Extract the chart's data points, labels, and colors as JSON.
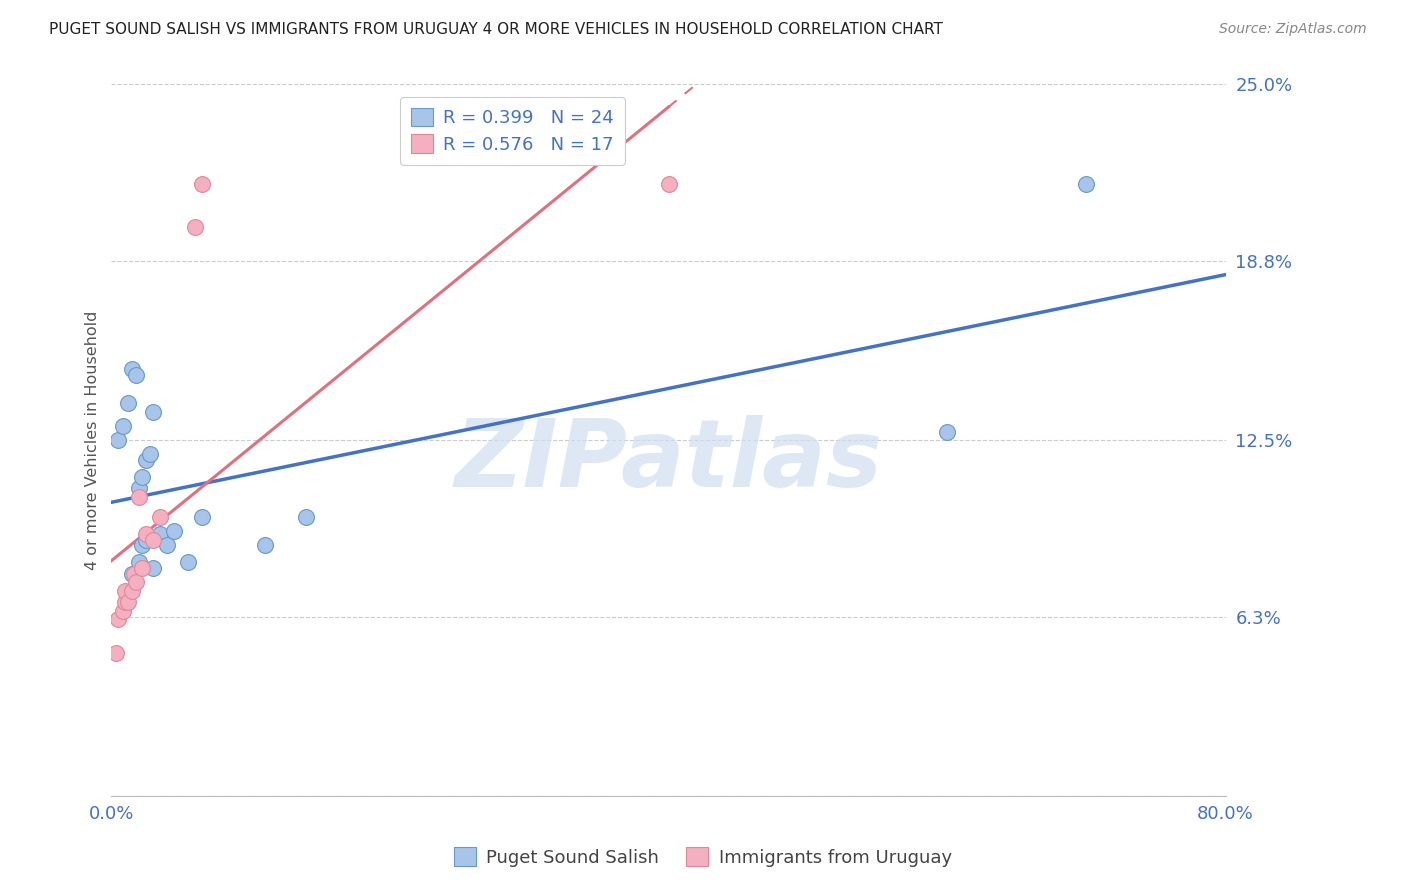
{
  "title": "PUGET SOUND SALISH VS IMMIGRANTS FROM URUGUAY 4 OR MORE VEHICLES IN HOUSEHOLD CORRELATION CHART",
  "source": "Source: ZipAtlas.com",
  "ylabel": "4 or more Vehicles in Household",
  "xlim": [
    0.0,
    0.8
  ],
  "ylim": [
    0.0,
    0.25
  ],
  "yticks": [
    0.0,
    0.063,
    0.125,
    0.188,
    0.25
  ],
  "ytick_labels": [
    "",
    "6.3%",
    "12.5%",
    "18.8%",
    "25.0%"
  ],
  "xticks": [
    0.0,
    0.16,
    0.32,
    0.48,
    0.64,
    0.8
  ],
  "xtick_labels": [
    "0.0%",
    "",
    "",
    "",
    "",
    "80.0%"
  ],
  "blue_scatter_color": "#a8c4e8",
  "blue_edge_color": "#6699cc",
  "pink_scatter_color": "#f4b0c0",
  "pink_edge_color": "#e08898",
  "blue_line_color": "#4472c4",
  "pink_line_color": "#e07080",
  "R_blue": 0.399,
  "N_blue": 24,
  "R_pink": 0.576,
  "N_pink": 17,
  "blue_scatter_x": [
    0.005,
    0.008,
    0.012,
    0.015,
    0.018,
    0.02,
    0.022,
    0.025,
    0.028,
    0.03,
    0.015,
    0.02,
    0.022,
    0.025,
    0.03,
    0.035,
    0.04,
    0.045,
    0.055,
    0.065,
    0.11,
    0.14,
    0.6,
    0.7
  ],
  "blue_scatter_y": [
    0.125,
    0.13,
    0.138,
    0.15,
    0.148,
    0.108,
    0.112,
    0.118,
    0.12,
    0.135,
    0.078,
    0.082,
    0.088,
    0.09,
    0.08,
    0.092,
    0.088,
    0.093,
    0.082,
    0.098,
    0.088,
    0.098,
    0.128,
    0.215
  ],
  "pink_scatter_x": [
    0.003,
    0.005,
    0.008,
    0.01,
    0.01,
    0.012,
    0.015,
    0.016,
    0.018,
    0.02,
    0.022,
    0.025,
    0.03,
    0.035,
    0.06,
    0.065,
    0.4
  ],
  "pink_scatter_y": [
    0.05,
    0.062,
    0.065,
    0.068,
    0.072,
    0.068,
    0.072,
    0.078,
    0.075,
    0.105,
    0.08,
    0.092,
    0.09,
    0.098,
    0.2,
    0.215,
    0.215
  ],
  "background_color": "#ffffff",
  "grid_color": "#cccccc",
  "title_color": "#222222",
  "tick_color_right": "#4472c4",
  "tick_color_bottom": "#4472c4",
  "watermark_text": "ZIPatlas",
  "watermark_color": "#d0dff0"
}
